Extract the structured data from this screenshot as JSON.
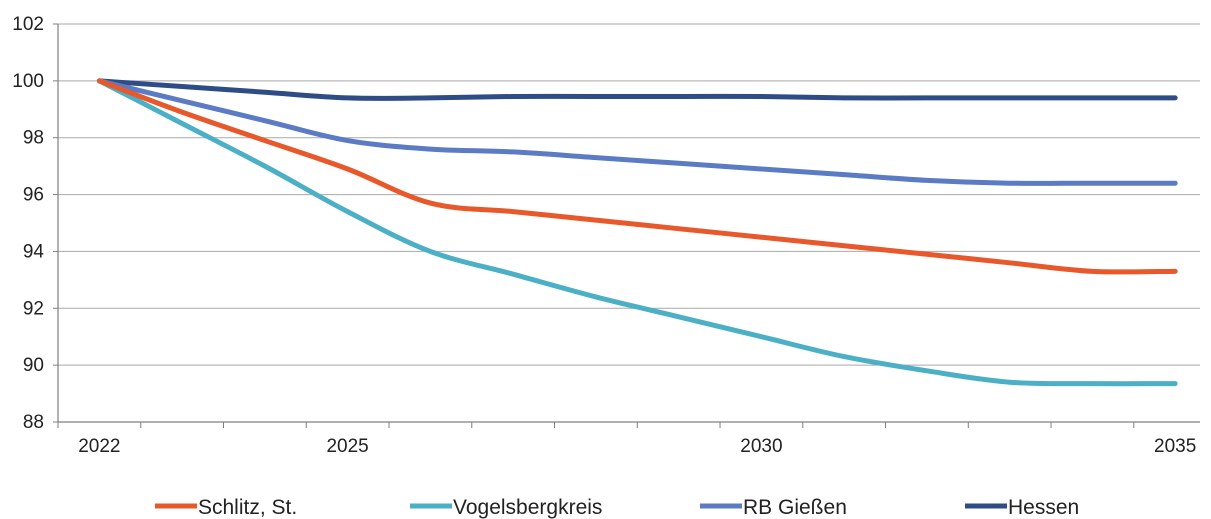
{
  "chart_data": {
    "type": "line",
    "x": [
      2022,
      2023,
      2024,
      2025,
      2026,
      2027,
      2028,
      2029,
      2030,
      2031,
      2032,
      2033,
      2034,
      2035
    ],
    "x_tick_labels": [
      "2022",
      "2025",
      "2030",
      "2035"
    ],
    "xlim": [
      2021.5,
      2035.3
    ],
    "ylim": [
      88,
      102
    ],
    "y_ticks": [
      88,
      90,
      92,
      94,
      96,
      98,
      100,
      102
    ],
    "grid": "horizontal",
    "legend_position": "bottom",
    "series": [
      {
        "name": "Schlitz, St.",
        "color": "#E8582A",
        "values": [
          100,
          98.9,
          97.9,
          96.9,
          95.7,
          95.4,
          95.1,
          94.8,
          94.5,
          94.2,
          93.9,
          93.6,
          93.3,
          93.3
        ]
      },
      {
        "name": "Vogelsbergkreis",
        "color": "#4BAFC6",
        "values": [
          100,
          98.5,
          97.0,
          95.4,
          94.0,
          93.2,
          92.4,
          91.7,
          91.0,
          90.3,
          89.8,
          89.4,
          89.35,
          89.35
        ]
      },
      {
        "name": "RB Gießen",
        "color": "#5B7BC4",
        "values": [
          100,
          99.3,
          98.6,
          97.9,
          97.6,
          97.5,
          97.3,
          97.1,
          96.9,
          96.7,
          96.5,
          96.4,
          96.4,
          96.4
        ]
      },
      {
        "name": "Hessen",
        "color": "#2E4C86",
        "values": [
          100,
          99.8,
          99.6,
          99.4,
          99.4,
          99.45,
          99.45,
          99.45,
          99.45,
          99.4,
          99.4,
          99.4,
          99.4,
          99.4
        ]
      }
    ]
  }
}
